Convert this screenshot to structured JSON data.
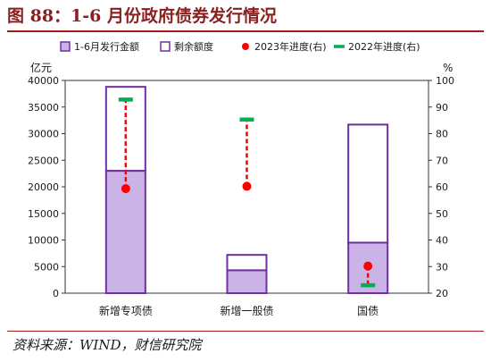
{
  "figure": {
    "title": "图 88：1-6 月份政府债券发行情况",
    "source": "资料来源：WIND，财信研究院"
  },
  "colors": {
    "title": "#8a1f1f",
    "bar_fill": "#cbb3e8",
    "bar_stroke": "#7030a0",
    "marker_2023": "#ff0000",
    "marker_2022": "#00b050"
  },
  "chart_data": {
    "type": "bar",
    "stacked": true,
    "categories": [
      "新增专项债",
      "新增一般债",
      "国债"
    ],
    "series": [
      {
        "name": "1-6月发行金额",
        "axis": "left",
        "values": [
          23000,
          4300,
          9500
        ]
      },
      {
        "name": "剩余额度",
        "axis": "left",
        "values": [
          15800,
          2900,
          22200
        ]
      },
      {
        "name": "2023年进度(右)",
        "axis": "right",
        "type": "marker",
        "values": [
          59.3,
          60.2,
          30.2
        ]
      },
      {
        "name": "2022年进度(右)",
        "axis": "right",
        "type": "marker",
        "values": [
          92.8,
          85.3,
          23.0
        ]
      }
    ],
    "left_axis": {
      "unit": "亿元",
      "ylim": [
        0,
        40000
      ],
      "ticks": [
        0,
        5000,
        10000,
        15000,
        20000,
        25000,
        30000,
        35000,
        40000
      ],
      "tick_labels": [
        "0",
        "5000",
        "10000",
        "15000",
        "20000",
        "25000",
        "30000",
        "35000",
        "40000"
      ]
    },
    "right_axis": {
      "unit": "%",
      "ylim": [
        20,
        100
      ],
      "ticks": [
        20,
        30,
        40,
        50,
        60,
        70,
        80,
        90,
        100
      ],
      "tick_labels": [
        "20",
        "30",
        "40",
        "50",
        "60",
        "70",
        "80",
        "90",
        "100"
      ]
    },
    "legend": {
      "position": "top",
      "items": [
        {
          "label": "1-6月发行金额",
          "symbol": "filled-square"
        },
        {
          "label": "剩余额度",
          "symbol": "outline-square"
        },
        {
          "label": "2023年进度(右)",
          "symbol": "red-dot"
        },
        {
          "label": "2022年进度(右)",
          "symbol": "green-dash"
        }
      ]
    },
    "grid": false
  }
}
